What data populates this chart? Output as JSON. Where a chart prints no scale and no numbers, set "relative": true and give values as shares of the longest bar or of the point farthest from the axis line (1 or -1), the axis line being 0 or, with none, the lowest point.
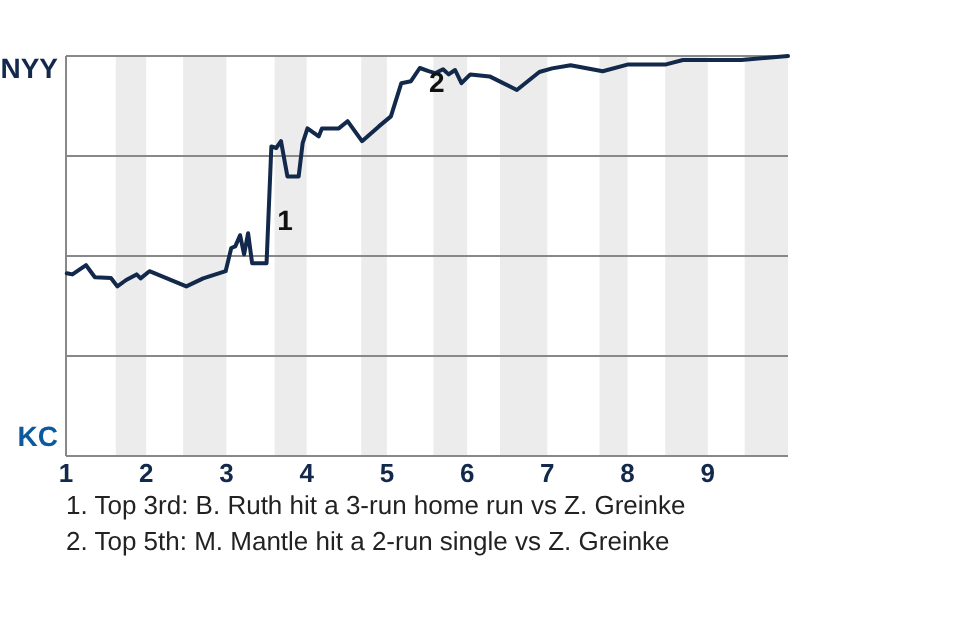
{
  "chart_data": {
    "type": "line",
    "relative": true,
    "xlim": [
      1,
      10
    ],
    "xticks": [
      1,
      2,
      3,
      4,
      5,
      6,
      7,
      8,
      9
    ],
    "grid": "y",
    "marker": "none",
    "line_style": "solid",
    "x": [
      1.01,
      1.08,
      1.25,
      1.36,
      1.56,
      1.64,
      1.75,
      1.88,
      1.93,
      2.04,
      2.5,
      2.71,
      2.99,
      3.06,
      3.11,
      3.17,
      3.22,
      3.27,
      3.32,
      3.5,
      3.56,
      3.62,
      3.68,
      3.76,
      3.9,
      3.95,
      4.01,
      4.15,
      4.19,
      4.4,
      4.51,
      4.69,
      4.9,
      5.05,
      5.18,
      5.3,
      5.41,
      5.52,
      5.6,
      5.7,
      5.77,
      5.85,
      5.93,
      6.04,
      6.28,
      6.62,
      6.9,
      7.06,
      7.29,
      7.69,
      8.01,
      8.48,
      8.69,
      9.42,
      10
    ],
    "series": [
      {
        "color": "#13294b",
        "values": [
          0.457,
          0.454,
          0.477,
          0.447,
          0.445,
          0.424,
          0.44,
          0.454,
          0.444,
          0.462,
          0.424,
          0.444,
          0.462,
          0.52,
          0.524,
          0.552,
          0.504,
          0.557,
          0.482,
          0.482,
          0.774,
          0.77,
          0.787,
          0.699,
          0.699,
          0.782,
          0.819,
          0.799,
          0.819,
          0.819,
          0.837,
          0.787,
          0.824,
          0.849,
          0.932,
          0.937,
          0.97,
          0.962,
          0.957,
          0.967,
          0.954,
          0.965,
          0.932,
          0.954,
          0.949,
          0.915,
          0.96,
          0.969,
          0.977,
          0.962,
          0.979,
          0.979,
          0.99,
          0.99,
          1
        ]
      }
    ],
    "bands": [
      {
        "axis": "x",
        "from": 1.62,
        "to": 2,
        "color": "#ececec"
      },
      {
        "axis": "x",
        "from": 2.46,
        "to": 3,
        "color": "#ececec"
      },
      {
        "axis": "x",
        "from": 3.6,
        "to": 4,
        "color": "#ececec"
      },
      {
        "axis": "x",
        "from": 4.68,
        "to": 5,
        "color": "#ececec"
      },
      {
        "axis": "x",
        "from": 5.58,
        "to": 6,
        "color": "#ececec"
      },
      {
        "axis": "x",
        "from": 6.41,
        "to": 7,
        "color": "#ececec"
      },
      {
        "axis": "x",
        "from": 7.65,
        "to": 8,
        "color": "#ececec"
      },
      {
        "axis": "x",
        "from": 8.47,
        "to": 9,
        "color": "#ececec"
      },
      {
        "axis": "x",
        "from": 9.46,
        "to": 10,
        "color": "#ececec"
      }
    ],
    "annotations": [
      "NYY",
      "KC",
      {
        "text": "1",
        "x": 3.56,
        "y": 0.62
      },
      {
        "text": "2",
        "x": 5.45,
        "y": 0.965
      },
      "1. Top 3rd: B. Ruth hit a 3-run home run vs Z. Greinke",
      "2. Top 5th: M. Mantle hit a 2-run single vs Z. Greinke"
    ]
  }
}
